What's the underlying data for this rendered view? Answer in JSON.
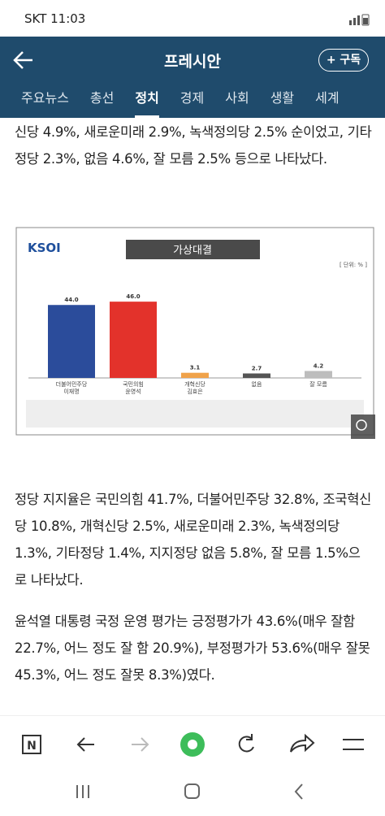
{
  "status_bar": {
    "carrier_time": "SKT 11:03"
  },
  "header": {
    "title": "프레시안",
    "subscribe": "+ 구독"
  },
  "tabs": [
    "주요뉴스",
    "총선",
    "정치",
    "경제",
    "사회",
    "생활",
    "세계"
  ],
  "active_tab": "정치",
  "article": {
    "paragraphs": [
      "신당 4.9%, 새로운미래 2.9%, 녹색정의당 2.5% 순이었고, 기타 정당 2.3%, 없음 4.6%, 잘 모름 2.5% 등으로 나타났다.",
      "정당 지지율은 국민의힘 41.7%, 더불어민주당 32.8%, 조국혁신당 10.8%, 개혁신당 2.5%, 새로운미래 2.3%, 녹색정의당 1.3%, 기타정당 1.4%, 지지정당 없음 5.8%, 잘 모름 1.5%으로 나타났다.",
      "윤석열 대통령 국정 운영 평가는 긍정평가가 43.6%(매우 잘함 22.7%, 어느 정도 잘 함 20.9%), 부정평가가 53.6%(매우 잘못 45.3%, 어느 정도 잘못 8.3%)였다."
    ]
  },
  "chart_data": {
    "type": "bar",
    "title": "가상대결",
    "logo": "KSOI",
    "unit": "[ 단위: % ]",
    "categories": [
      [
        "더불어민주당",
        "이재명"
      ],
      [
        "국민의힘",
        "윤영석"
      ],
      [
        "개혁신당",
        "김효은"
      ],
      [
        "없음"
      ],
      [
        "잘 모름"
      ]
    ],
    "values": [
      44.0,
      46.0,
      3.1,
      2.7,
      4.2
    ],
    "value_labels": [
      "44.0",
      "46.0",
      "3.1",
      "2.7",
      "4.2"
    ],
    "colors": [
      "#2b4c9b",
      "#e3322b",
      "#f0a24a",
      "#555555",
      "#bdbdbd"
    ],
    "ylim": [
      0,
      50
    ]
  }
}
